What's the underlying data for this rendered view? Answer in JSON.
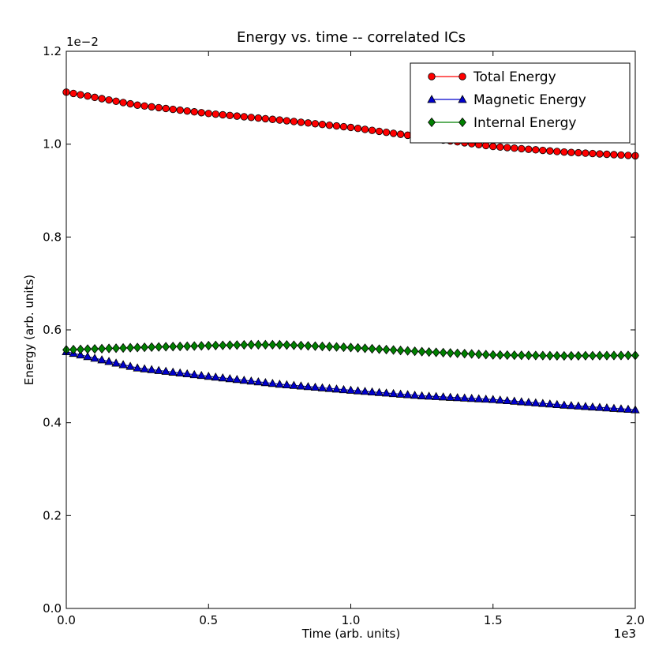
{
  "chart_data": {
    "type": "line",
    "title": "Energy vs. time -- correlated ICs",
    "xlabel": "Time (arb. units)",
    "ylabel": "Energy (arb. units)",
    "xlim": [
      0,
      2000
    ],
    "ylim": [
      0,
      0.012
    ],
    "x_offset_label": "1e3",
    "y_offset_label": "1e−2",
    "x_ticks": [
      0,
      500,
      1000,
      1500,
      2000
    ],
    "x_tick_labels": [
      "0.0",
      "0.5",
      "1.0",
      "1.5",
      "2.0"
    ],
    "y_ticks": [
      0,
      0.002,
      0.004,
      0.006,
      0.008,
      0.01,
      0.012
    ],
    "y_tick_labels": [
      "0.0",
      "0.2",
      "0.4",
      "0.6",
      "0.8",
      "1.0",
      "1.2"
    ],
    "legend_position": "top-right",
    "grid": false,
    "series": [
      {
        "name": "Total Energy",
        "color": "#ff0000",
        "marker": "circle",
        "x_start": 0,
        "x_step": 25,
        "count": 81,
        "anchors": [
          [
            0,
            0.01112
          ],
          [
            250,
            0.01084
          ],
          [
            500,
            0.01066
          ],
          [
            750,
            0.01052
          ],
          [
            1000,
            0.01036
          ],
          [
            1250,
            0.01015
          ],
          [
            1500,
            0.00995
          ],
          [
            1750,
            0.00983
          ],
          [
            2000,
            0.00975
          ]
        ]
      },
      {
        "name": "Magnetic Energy",
        "color": "#0000cc",
        "marker": "triangle",
        "x_start": 0,
        "x_step": 25,
        "count": 81,
        "anchors": [
          [
            0,
            0.00553
          ],
          [
            250,
            0.00518
          ],
          [
            500,
            0.005
          ],
          [
            750,
            0.00483
          ],
          [
            1000,
            0.0047
          ],
          [
            1250,
            0.00458
          ],
          [
            1500,
            0.0045
          ],
          [
            1750,
            0.00438
          ],
          [
            2000,
            0.00428
          ]
        ]
      },
      {
        "name": "Internal Energy",
        "color": "#008000",
        "marker": "diamond",
        "x_start": 0,
        "x_step": 25,
        "count": 81,
        "anchors": [
          [
            0,
            0.00557
          ],
          [
            250,
            0.00562
          ],
          [
            500,
            0.00566
          ],
          [
            650,
            0.00568
          ],
          [
            750,
            0.00568
          ],
          [
            1000,
            0.00562
          ],
          [
            1250,
            0.00553
          ],
          [
            1500,
            0.00546
          ],
          [
            1750,
            0.00544
          ],
          [
            2000,
            0.00545
          ]
        ]
      }
    ]
  }
}
